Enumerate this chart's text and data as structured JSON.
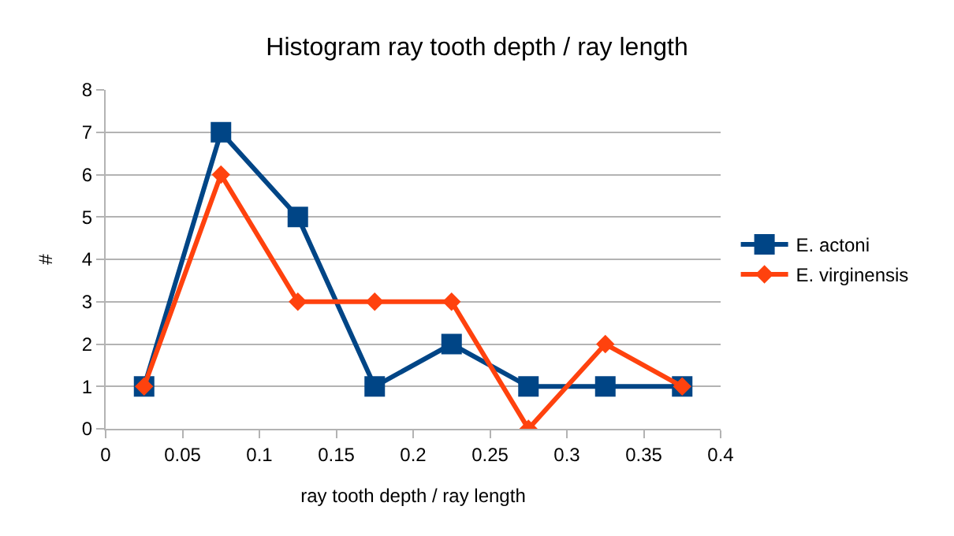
{
  "chart_data": {
    "type": "line",
    "title": "Histogram ray tooth depth / ray length",
    "xlabel": "ray tooth depth / ray length",
    "ylabel": "#",
    "x": [
      0.025,
      0.075,
      0.125,
      0.175,
      0.225,
      0.275,
      0.325,
      0.375
    ],
    "series": [
      {
        "name": "E. actoni",
        "color": "#004586",
        "marker": "square",
        "values": [
          1,
          7,
          5,
          1,
          2,
          1,
          1,
          1
        ]
      },
      {
        "name": "E. virginensis",
        "color": "#ff420e",
        "marker": "diamond",
        "values": [
          1,
          6,
          3,
          3,
          3,
          0,
          2,
          1
        ]
      }
    ],
    "xlim": [
      0,
      0.4
    ],
    "xticks": [
      0,
      0.05,
      0.1,
      0.15,
      0.2,
      0.25,
      0.3,
      0.35,
      0.4
    ],
    "ylim": [
      0,
      8
    ],
    "yticks": [
      0,
      1,
      2,
      3,
      4,
      5,
      6,
      7,
      8
    ],
    "grid": "y",
    "legend": "right",
    "line_style": "solid"
  }
}
